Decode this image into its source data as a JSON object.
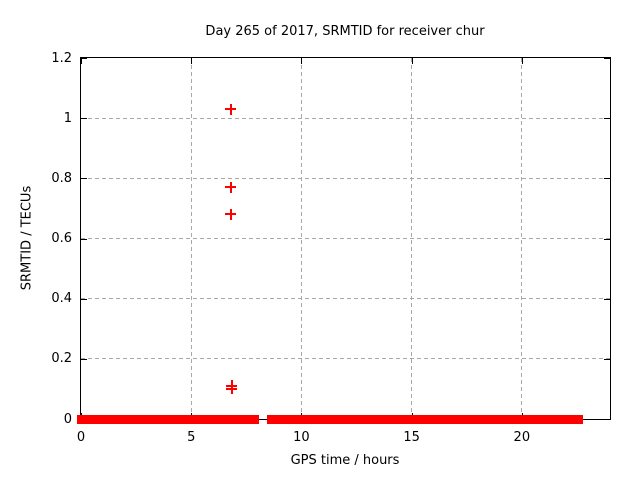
{
  "chart_data": {
    "type": "scatter",
    "title": "Day 265 of 2017, SRMTID for receiver chur",
    "xlabel": "GPS time / hours",
    "ylabel": "SRMTID / TECUs",
    "xlim": [
      0,
      24
    ],
    "ylim": [
      0,
      1.2
    ],
    "xticks": {
      "values": [
        0,
        5,
        10,
        15,
        20
      ],
      "labels": [
        "0",
        "5",
        "10",
        "15",
        "20"
      ]
    },
    "yticks": {
      "values": [
        0,
        0.2,
        0.4,
        0.6,
        0.8,
        1.0,
        1.2
      ],
      "labels": [
        "0",
        "0.2",
        "0.4",
        "0.6",
        "0.8",
        "1",
        "1.2"
      ]
    },
    "grid": true,
    "legend_position": "none",
    "marker_style": "plus",
    "colors": {
      "series": "#ff0000",
      "grid": "#a8a8a8",
      "axis": "#000000",
      "text": "#000000"
    },
    "series": [
      {
        "name": "SRMTID",
        "baseline_segments": [
          {
            "x_start": 0.0,
            "x_end": 7.9,
            "y": 0.0
          },
          {
            "x_start": 8.6,
            "x_end": 22.6,
            "y": 0.0
          }
        ],
        "points": [
          {
            "x": 6.8,
            "y": 1.03
          },
          {
            "x": 6.8,
            "y": 0.77
          },
          {
            "x": 6.8,
            "y": 0.68
          },
          {
            "x": 6.85,
            "y": 0.11
          },
          {
            "x": 6.85,
            "y": 0.1
          }
        ]
      }
    ]
  }
}
